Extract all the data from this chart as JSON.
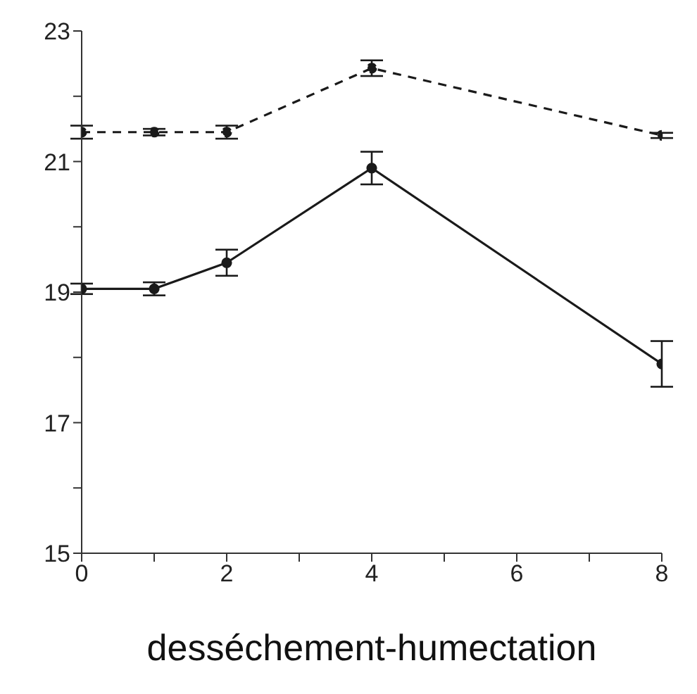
{
  "chart_data": {
    "type": "line",
    "xlabel": "desséchement-humectation",
    "x": [
      0,
      1,
      2,
      4,
      8
    ],
    "series": [
      {
        "color": "#1a1a1a",
        "values": [
          21.45,
          21.45,
          21.45,
          22.43,
          21.4
        ],
        "errors": [
          0.1,
          0.05,
          0.1,
          0.12,
          0.04
        ],
        "line_style": "dashed"
      },
      {
        "color": "#1a1a1a",
        "values": [
          19.05,
          19.05,
          19.45,
          20.9,
          17.9
        ],
        "errors": [
          0.08,
          0.1,
          0.2,
          0.25,
          0.35
        ],
        "line_style": "solid"
      }
    ],
    "marker": "circle",
    "grid": false,
    "legend": false,
    "xlim": [
      0,
      8
    ],
    "xticks": [
      0,
      {
        "value": 1,
        "label": null
      },
      2,
      {
        "value": 3,
        "label": null
      },
      4,
      {
        "value": 5,
        "label": null
      },
      6,
      {
        "value": 7,
        "label": null
      },
      8
    ],
    "ylim": [
      15,
      23
    ],
    "yticks": [
      15,
      {
        "value": 16,
        "label": null
      },
      17,
      {
        "value": 18,
        "label": null
      },
      19,
      {
        "value": 20,
        "label": null
      },
      21,
      {
        "value": 22,
        "label": null
      },
      23
    ]
  }
}
